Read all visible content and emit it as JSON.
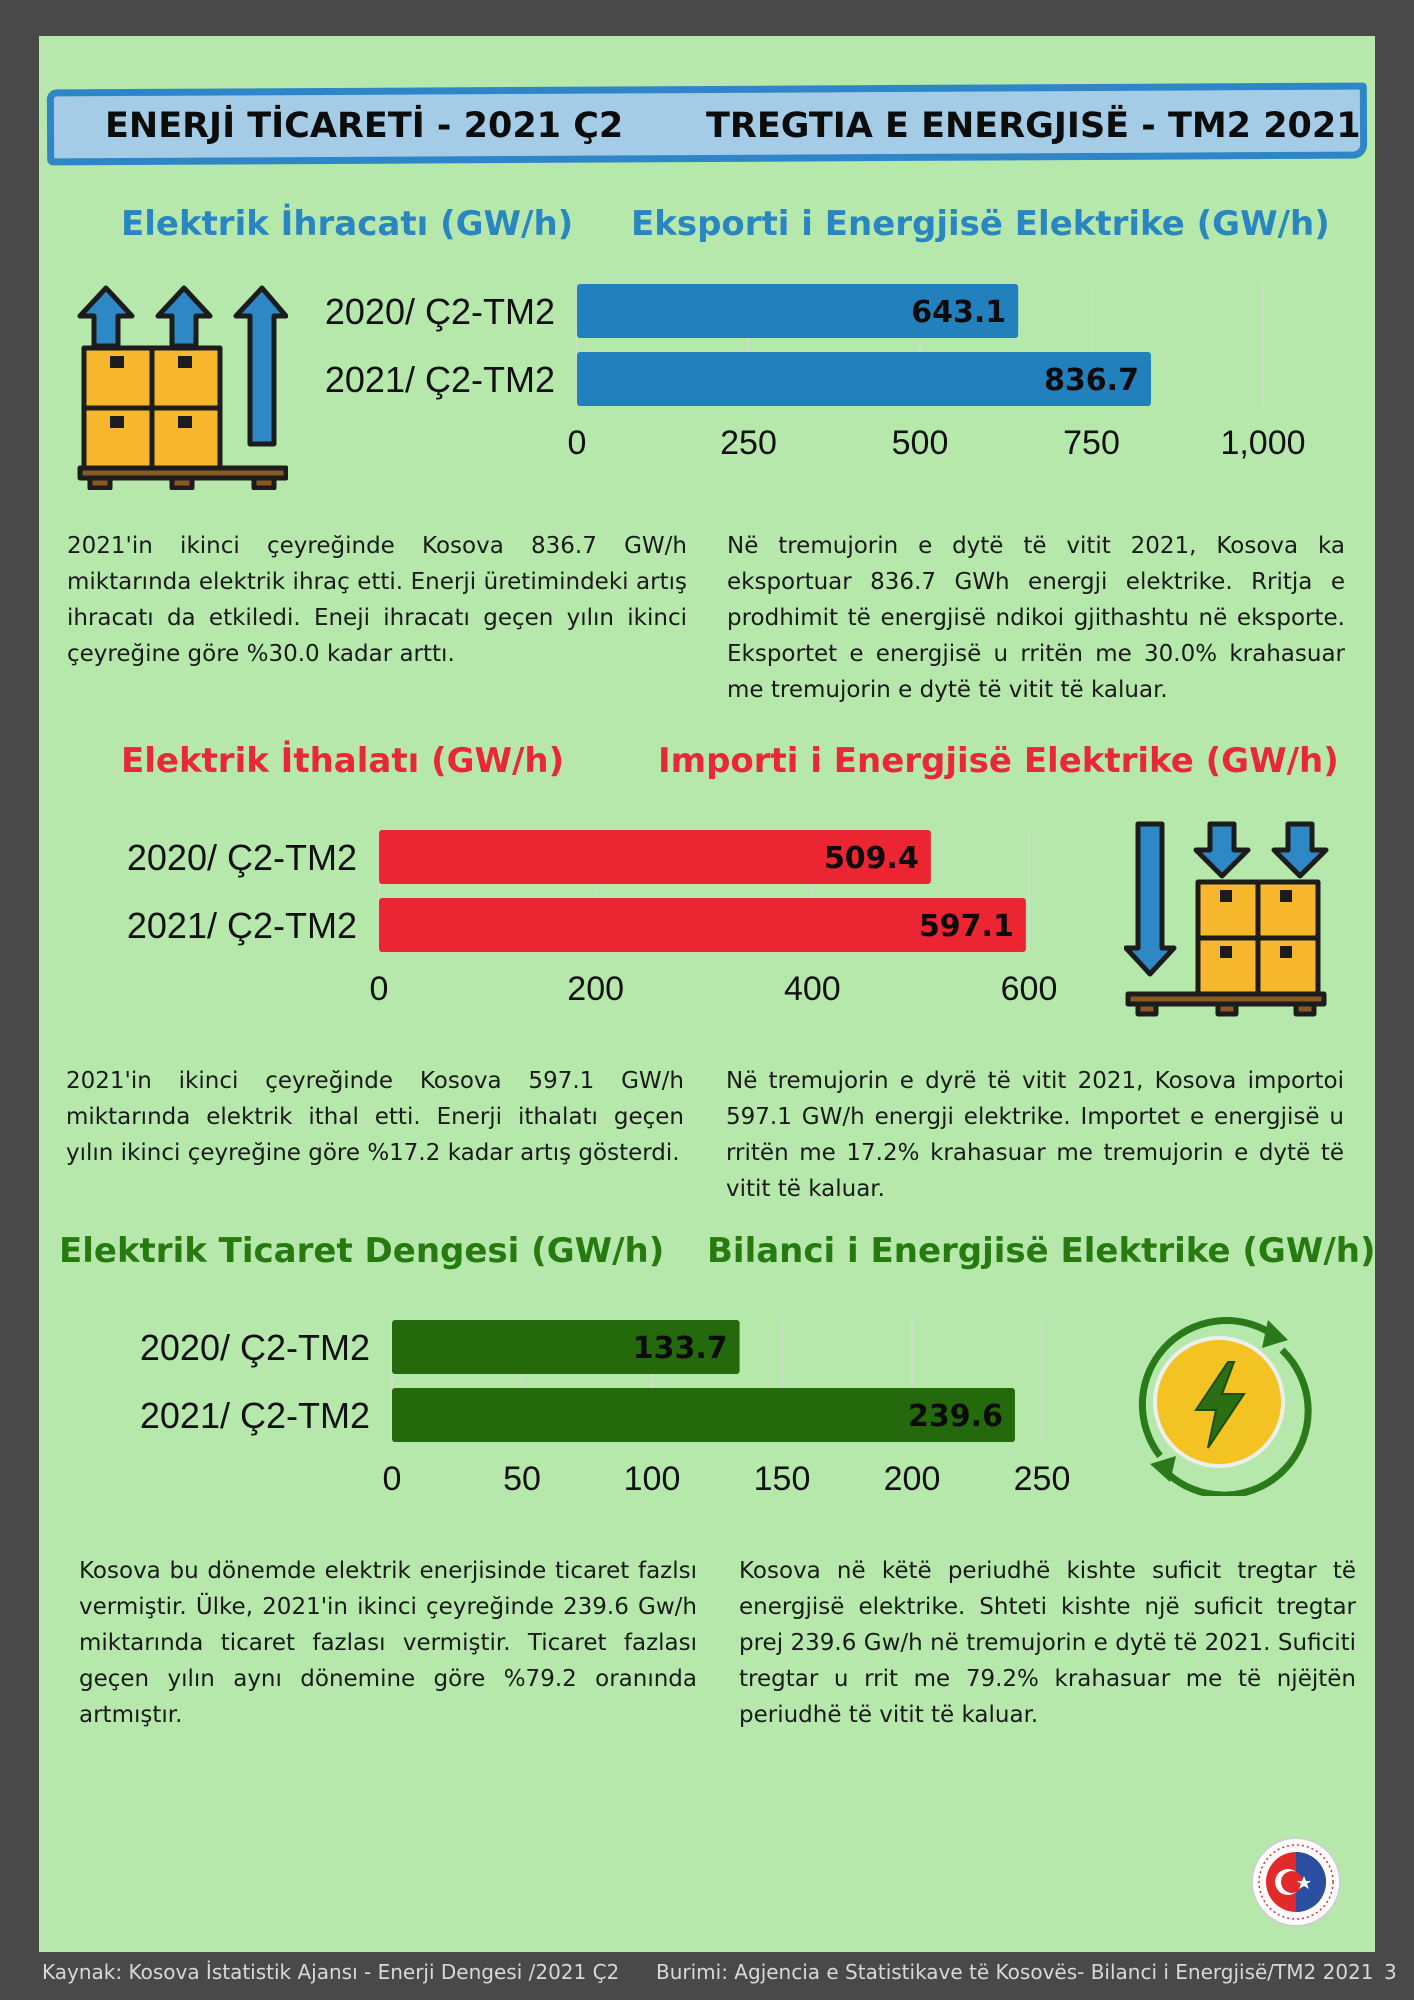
{
  "header": {
    "title_tr": "ENERJİ TİCARETİ - 2021 Ç2",
    "title_sq": "TREGTIA E ENERGJISË - TM2 2021"
  },
  "export": {
    "title_tr": "Elektrik İhracatı (GW/h)",
    "title_sq": "Eksporti i Energjisë Elektrike (GW/h)",
    "text_tr": "2021'in ikinci çeyreğinde Kosova 836.7 GW/h miktarında elektrik ihraç etti. Enerji üretimindeki artış ihracatı da etkiledi. Eneji ihracatı geçen yılın ikinci çeyreğine göre %30.0 kadar arttı.",
    "text_sq": "Në tremujorin e dytë të vitit 2021,  Kosova ka eksportuar 836.7 GWh energji elektrike. Rritja e prodhimit të energjisë ndikoi gjithashtu në eksporte. Eksportet e energjisë u rritën me 30.0% krahasuar me tremujorin e dytë të vitit të kaluar."
  },
  "import": {
    "title_tr": "Elektrik İthalatı (GW/h)",
    "title_sq": "Importi i Energjisë Elektrike (GW/h)",
    "text_tr": "2021'in ikinci çeyreğinde Kosova 597.1 GW/h miktarında elektrik ithal etti. Enerji ithalatı  geçen yılın ikinci çeyreğine göre %17.2 kadar artış gösterdi.",
    "text_sq": "Në tremujorin e dyrë të vitit 2021, Kosova importoi 597.1 GW/h energji elektrike. Importet e energjisë u rritën me 17.2% krahasuar me tremujorin e dytë të vitit të kaluar."
  },
  "balance": {
    "title_tr": "Elektrik Ticaret Dengesi  (GW/h)",
    "title_sq": "Bilanci i Energjisë Elektrike (GW/h)",
    "text_tr": "Kosova  bu dönemde elektrik enerjisinde ticaret fazlsı vermiştir. Ülke, 2021'in ikinci çeyreğinde 239.6 Gw/h miktarında ticaret fazlası vermiştir. Ticaret fazlası geçen yılın aynı dönemine göre %79.2 oranında artmıştır.",
    "text_sq": "Kosova në këtë periudhë kishte suficit tregtar të energjisë elektrike. Shteti kishte një suficit tregtar prej 239.6 Gw/h në tremujorin e dytë të 2021. Suficiti tregtar u rrit me 79.2% krahasuar me të njëjtën periudhë të vitit të kaluar."
  },
  "footer": {
    "source_tr": "Kaynak: Kosova İstatistik Ajansı - Enerji Dengesi /2021 Ç2",
    "source_sq": "Burimi: Agjencia e Statistikave të Kosovës- Bilanci i Energjisë/TM2 2021",
    "page_number": "3"
  },
  "colors": {
    "export": "#2280bd",
    "import": "#ec2532",
    "balance": "#246a0c"
  },
  "chart_data": [
    {
      "type": "bar",
      "orientation": "horizontal",
      "categories": [
        "2020/ Ç2-TM2",
        "2021/ Ç2-TM2"
      ],
      "values": [
        643.1,
        836.7
      ],
      "data_labels": [
        "643.1",
        "836.7"
      ],
      "xlim": [
        0,
        1000
      ],
      "ticks": [
        0,
        250,
        500,
        750,
        1000
      ],
      "tick_labels": [
        "0",
        "250",
        "500",
        "750",
        "1,000"
      ],
      "color": "#2280bd",
      "grid": true
    },
    {
      "type": "bar",
      "orientation": "horizontal",
      "categories": [
        "2020/ Ç2-TM2",
        "2021/ Ç2-TM2"
      ],
      "values": [
        509.4,
        597.1
      ],
      "data_labels": [
        "509.4",
        "597.1"
      ],
      "xlim": [
        0,
        600
      ],
      "ticks": [
        0,
        200,
        400,
        600
      ],
      "tick_labels": [
        "0",
        "200",
        "400",
        "600"
      ],
      "color": "#ec2532",
      "grid": true
    },
    {
      "type": "bar",
      "orientation": "horizontal",
      "categories": [
        "2020/ Ç2-TM2",
        "2021/ Ç2-TM2"
      ],
      "values": [
        133.7,
        239.6
      ],
      "data_labels": [
        "133.7",
        "239.6"
      ],
      "xlim": [
        0,
        250
      ],
      "ticks": [
        0,
        50,
        100,
        150,
        200,
        250
      ],
      "tick_labels": [
        "0",
        "50",
        "100",
        "150",
        "200",
        "250"
      ],
      "color": "#246a0c",
      "grid": true
    }
  ]
}
